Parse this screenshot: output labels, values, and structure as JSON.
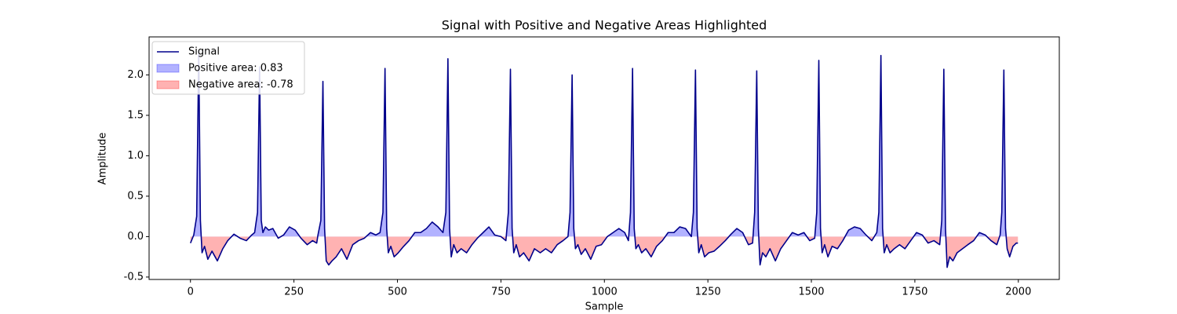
{
  "chart_data": {
    "type": "line",
    "title": "Signal with Positive and Negative Areas Highlighted",
    "xlabel": "Sample",
    "ylabel": "Amplitude",
    "line_name": "Signal",
    "line_color": "#00008b",
    "fills": [
      {
        "name": "Positive area: 0.83",
        "color": "#0000ff",
        "alpha": 0.3,
        "side": "positive"
      },
      {
        "name": "Negative area: -0.78",
        "color": "#ff0000",
        "alpha": 0.3,
        "side": "negative"
      }
    ],
    "x": [
      0,
      8,
      15,
      20,
      24,
      28,
      34,
      42,
      52,
      65,
      78,
      90,
      105,
      120,
      135,
      148,
      155,
      162,
      167,
      171,
      175,
      181,
      189,
      199,
      212,
      225,
      239,
      253,
      267,
      282,
      295,
      305,
      308,
      315,
      320,
      324,
      328,
      334,
      342,
      352,
      365,
      378,
      392,
      406,
      420,
      435,
      448,
      458,
      465,
      470,
      474,
      478,
      484,
      492,
      502,
      515,
      528,
      542,
      556,
      570,
      584,
      598,
      610,
      617,
      622,
      626,
      630,
      636,
      644,
      654,
      667,
      680,
      693,
      707,
      721,
      735,
      750,
      762,
      768,
      773,
      777,
      781,
      787,
      795,
      805,
      818,
      831,
      845,
      858,
      872,
      886,
      900,
      912,
      917,
      922,
      926,
      930,
      936,
      944,
      954,
      967,
      980,
      993,
      1007,
      1021,
      1035,
      1049,
      1058,
      1063,
      1068,
      1072,
      1076,
      1082,
      1090,
      1100,
      1113,
      1126,
      1140,
      1154,
      1168,
      1182,
      1196,
      1210,
      1215,
      1220,
      1224,
      1228,
      1234,
      1242,
      1252,
      1265,
      1278,
      1292,
      1306,
      1320,
      1334,
      1348,
      1358,
      1363,
      1368,
      1372,
      1376,
      1382,
      1390,
      1400,
      1413,
      1426,
      1440,
      1454,
      1468,
      1482,
      1496,
      1508,
      1513,
      1518,
      1522,
      1526,
      1532,
      1540,
      1550,
      1563,
      1576,
      1590,
      1604,
      1618,
      1632,
      1646,
      1658,
      1663,
      1668,
      1672,
      1676,
      1682,
      1690,
      1700,
      1713,
      1726,
      1740,
      1754,
      1768,
      1782,
      1796,
      1810,
      1815,
      1820,
      1824,
      1828,
      1834,
      1842,
      1852,
      1865,
      1878,
      1892,
      1906,
      1920,
      1934,
      1948,
      1956,
      1960,
      1965,
      1969,
      1973,
      1979,
      1987,
      1995,
      1999
    ],
    "values": [
      -0.08,
      0.02,
      0.25,
      2.3,
      0.2,
      -0.2,
      -0.12,
      -0.28,
      -0.18,
      -0.3,
      -0.15,
      -0.05,
      0.03,
      -0.02,
      -0.05,
      0.02,
      0.05,
      0.3,
      2.1,
      0.2,
      0.05,
      0.12,
      0.08,
      0.1,
      -0.02,
      0.02,
      0.12,
      0.08,
      -0.02,
      -0.1,
      -0.05,
      -0.08,
      0.02,
      0.2,
      1.92,
      0.1,
      -0.3,
      -0.35,
      -0.3,
      -0.25,
      -0.15,
      -0.28,
      -0.1,
      -0.05,
      -0.02,
      0.05,
      0.02,
      0.05,
      0.3,
      2.08,
      0.1,
      -0.2,
      -0.12,
      -0.25,
      -0.2,
      -0.12,
      -0.05,
      0.05,
      0.05,
      0.1,
      0.18,
      0.12,
      0.05,
      0.3,
      2.2,
      0.1,
      -0.25,
      -0.1,
      -0.2,
      -0.15,
      -0.2,
      -0.1,
      -0.02,
      0.05,
      0.12,
      0.02,
      0.0,
      -0.05,
      0.3,
      2.07,
      0.1,
      -0.2,
      -0.1,
      -0.25,
      -0.2,
      -0.3,
      -0.15,
      -0.2,
      -0.15,
      -0.2,
      -0.1,
      -0.05,
      0.0,
      0.3,
      2.0,
      0.1,
      -0.15,
      -0.1,
      -0.22,
      -0.15,
      -0.28,
      -0.12,
      -0.1,
      0.0,
      0.05,
      0.1,
      0.05,
      -0.05,
      0.3,
      2.08,
      0.1,
      -0.15,
      -0.1,
      -0.2,
      -0.15,
      -0.25,
      -0.12,
      -0.05,
      0.05,
      0.05,
      0.12,
      0.1,
      0.0,
      0.3,
      2.06,
      0.1,
      -0.2,
      -0.1,
      -0.25,
      -0.2,
      -0.18,
      -0.12,
      -0.05,
      0.03,
      0.1,
      0.05,
      -0.1,
      -0.08,
      0.3,
      2.05,
      0.1,
      -0.35,
      -0.2,
      -0.25,
      -0.15,
      -0.3,
      -0.15,
      -0.05,
      0.05,
      0.02,
      0.05,
      -0.05,
      -0.02,
      0.3,
      2.18,
      0.1,
      -0.2,
      -0.1,
      -0.25,
      -0.12,
      -0.15,
      -0.05,
      0.08,
      0.12,
      0.1,
      0.02,
      -0.05,
      0.05,
      0.3,
      2.24,
      0.1,
      -0.2,
      -0.1,
      -0.2,
      -0.15,
      -0.1,
      -0.15,
      -0.05,
      0.05,
      0.02,
      -0.08,
      -0.05,
      -0.1,
      0.2,
      2.07,
      0.1,
      -0.38,
      -0.25,
      -0.3,
      -0.2,
      -0.15,
      -0.1,
      -0.05,
      0.05,
      0.02,
      -0.05,
      -0.1,
      0.02,
      0.3,
      2.06,
      0.1,
      -0.15,
      -0.25,
      -0.12,
      -0.08,
      -0.08
    ],
    "xlim": [
      -99.95,
      2098.95
    ],
    "ylim": [
      -0.53,
      2.47
    ],
    "xticks": [
      0,
      250,
      500,
      750,
      1000,
      1250,
      1500,
      1750,
      2000
    ],
    "yticks": [
      -0.5,
      {
        "value": 0,
        "label": "0.0"
      },
      0.5,
      {
        "value": 1,
        "label": "1.0"
      },
      1.5,
      {
        "value": 2,
        "label": "2.0"
      }
    ],
    "legend": "upper left"
  }
}
